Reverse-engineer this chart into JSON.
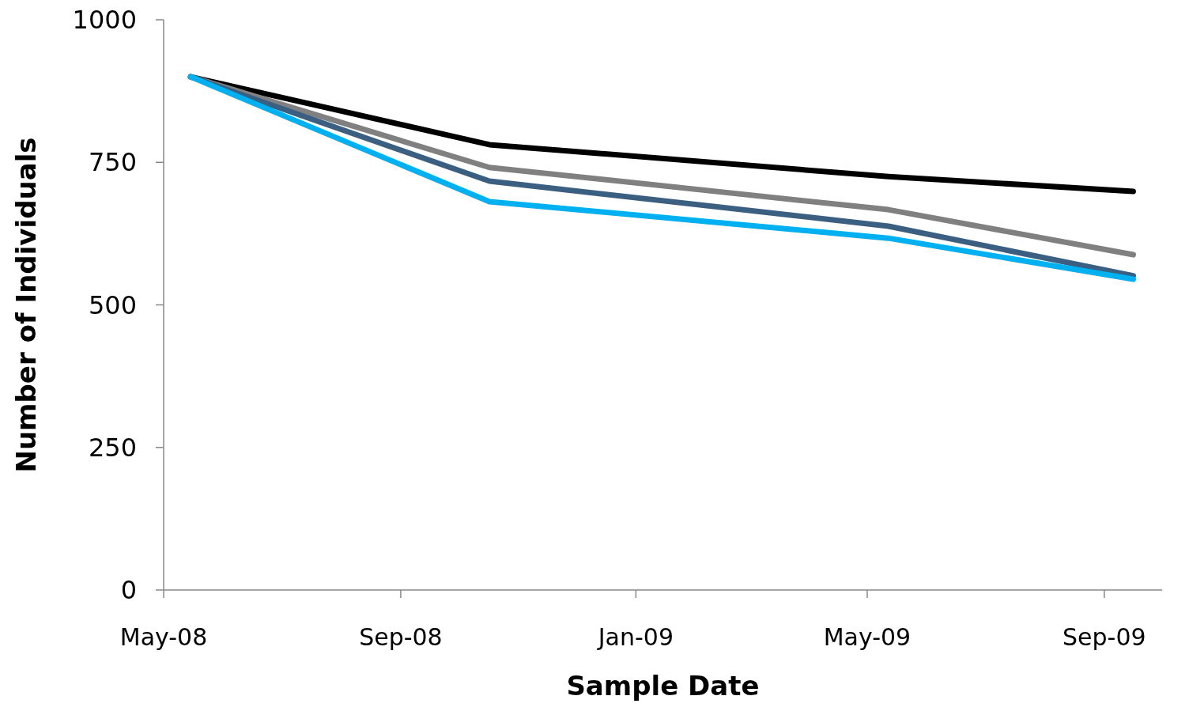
{
  "chart_data": {
    "type": "line",
    "xlabel": "Sample Date",
    "ylabel": "Number of Individuals",
    "x": [
      "2008-05-15",
      "2008-10-17",
      "2009-05-12",
      "2009-09-16"
    ],
    "series": [
      {
        "color": "#000000",
        "values": [
          900,
          781,
          725,
          699
        ]
      },
      {
        "color": "#808080",
        "values": [
          900,
          741,
          667,
          588
        ]
      },
      {
        "color": "#3b5f80",
        "values": [
          900,
          717,
          638,
          551
        ]
      },
      {
        "color": "#00b0f0",
        "values": [
          900,
          681,
          617,
          545
        ]
      }
    ],
    "xlim": [
      "2008-05-01",
      "2009-10-01"
    ],
    "xticks": [
      {
        "value": "2008-05-01",
        "label": "May-08"
      },
      {
        "value": "2008-09-01",
        "label": "Sep-08"
      },
      {
        "value": "2009-01-01",
        "label": "Jan-09"
      },
      {
        "value": "2009-05-01",
        "label": "May-09"
      },
      {
        "value": "2009-09-01",
        "label": "Sep-09"
      }
    ],
    "ylim": [
      0,
      1000
    ],
    "yticks": [
      0,
      250,
      500,
      750,
      1000
    ],
    "grid": false,
    "marker": "none",
    "line_style": "solid"
  }
}
